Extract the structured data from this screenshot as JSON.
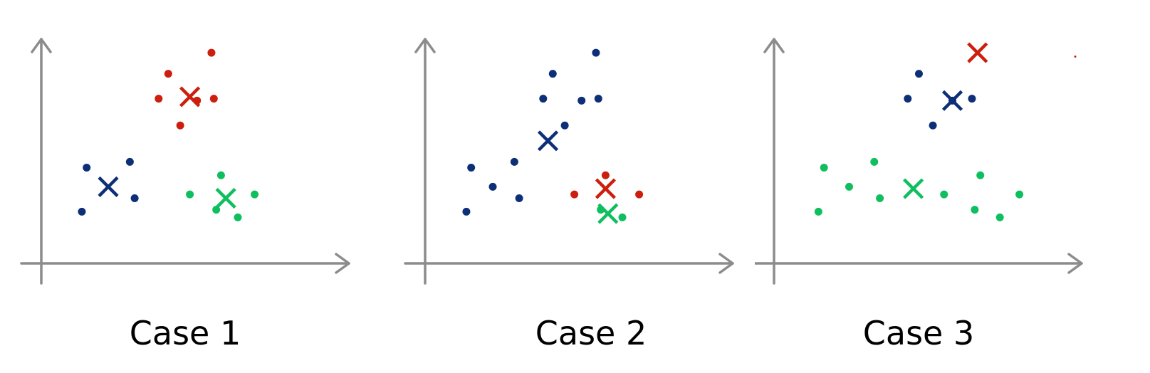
{
  "colors": {
    "axis": "#8c8c8c",
    "blue": "#0d2f78",
    "red": "#cc1f0e",
    "green": "#0fbf5f"
  },
  "chart_data": [
    {
      "type": "scatter",
      "title": "Case 1",
      "xlabel": "",
      "ylabel": "",
      "xlim": [
        0,
        100
      ],
      "ylim": [
        0,
        100
      ],
      "grid": false,
      "series": [
        {
          "color": "blue",
          "points": [
            [
              10,
              37
            ],
            [
              8,
              14
            ],
            [
              28,
              40
            ],
            [
              30,
              21
            ]
          ],
          "centroid": [
            19,
            27
          ]
        },
        {
          "color": "red",
          "points": [
            [
              44,
              86
            ],
            [
              40,
              73
            ],
            [
              62,
              97
            ],
            [
              56,
              72
            ],
            [
              63,
              73
            ],
            [
              49,
              59
            ]
          ],
          "centroid": [
            53,
            74
          ]
        },
        {
          "color": "green",
          "points": [
            [
              53,
              23
            ],
            [
              66,
              33
            ],
            [
              64,
              15
            ],
            [
              73,
              11
            ],
            [
              80,
              23
            ]
          ],
          "centroid": [
            68,
            21
          ]
        }
      ]
    },
    {
      "type": "scatter",
      "title": "Case 2",
      "xlabel": "",
      "ylabel": "",
      "xlim": [
        0,
        100
      ],
      "ylim": [
        0,
        100
      ],
      "grid": false,
      "series": [
        {
          "color": "blue",
          "points": [
            [
              10,
              37
            ],
            [
              8,
              14
            ],
            [
              19,
              27
            ],
            [
              28,
              40
            ],
            [
              30,
              21
            ],
            [
              44,
              86
            ],
            [
              40,
              73
            ],
            [
              62,
              97
            ],
            [
              56,
              72
            ],
            [
              63,
              73
            ],
            [
              49,
              59
            ]
          ],
          "centroid": [
            42,
            51
          ]
        },
        {
          "color": "red",
          "points": [
            [
              53,
              23
            ],
            [
              66,
              33
            ],
            [
              80,
              23
            ]
          ],
          "centroid": [
            66,
            26
          ]
        },
        {
          "color": "green",
          "points": [
            [
              64,
              15
            ],
            [
              73,
              11
            ]
          ],
          "centroid": [
            67,
            13
          ]
        }
      ]
    },
    {
      "type": "scatter",
      "title": "Case 3",
      "xlabel": "",
      "ylabel": "",
      "xlim": [
        0,
        100
      ],
      "ylim": [
        0,
        100
      ],
      "grid": false,
      "series": [
        {
          "color": "blue",
          "points": [
            [
              44,
              86
            ],
            [
              40,
              73
            ],
            [
              56,
              72
            ],
            [
              63,
              73
            ],
            [
              49,
              59
            ]
          ],
          "centroid": [
            56,
            72
          ]
        },
        {
          "color": "red",
          "points": [
            [
              100,
              95
            ]
          ],
          "centroid": [
            65,
            97
          ]
        },
        {
          "color": "green",
          "points": [
            [
              10,
              37
            ],
            [
              8,
              14
            ],
            [
              19,
              27
            ],
            [
              28,
              40
            ],
            [
              30,
              21
            ],
            [
              53,
              23
            ],
            [
              66,
              33
            ],
            [
              64,
              15
            ],
            [
              73,
              11
            ],
            [
              80,
              23
            ]
          ],
          "centroid": [
            42,
            26
          ]
        }
      ]
    }
  ]
}
